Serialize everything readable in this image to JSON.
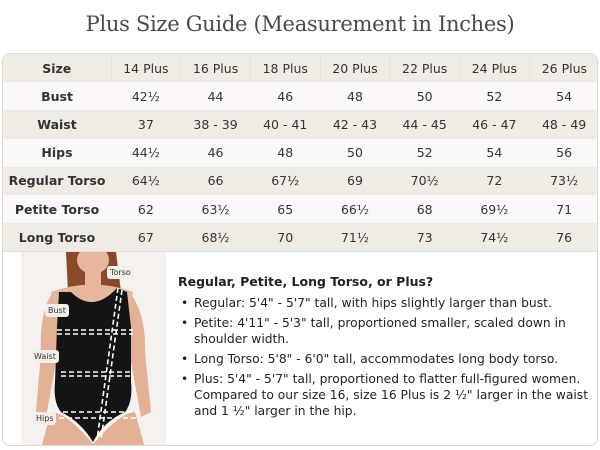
{
  "title": "Plus Size Guide (Measurement in Inches)",
  "table": {
    "header": [
      "Size",
      "14 Plus",
      "16 Plus",
      "18 Plus",
      "20 Plus",
      "22 Plus",
      "24 Plus",
      "26 Plus"
    ],
    "rows": [
      {
        "label": "Bust",
        "values": [
          "42½",
          "44",
          "46",
          "48",
          "50",
          "52",
          "54"
        ]
      },
      {
        "label": "Waist",
        "values": [
          "37",
          "38 - 39",
          "40 - 41",
          "42 - 43",
          "44 - 45",
          "46 - 47",
          "48 - 49"
        ]
      },
      {
        "label": "Hips",
        "values": [
          "44½",
          "46",
          "48",
          "50",
          "52",
          "54",
          "56"
        ]
      },
      {
        "label": "Regular Torso",
        "values": [
          "64½",
          "66",
          "67½",
          "69",
          "70½",
          "72",
          "73½"
        ]
      },
      {
        "label": "Petite Torso",
        "values": [
          "62",
          "63½",
          "65",
          "66½",
          "68",
          "69½",
          "71"
        ]
      },
      {
        "label": "Long Torso",
        "values": [
          "67",
          "68½",
          "70",
          "71½",
          "73",
          "74½",
          "76"
        ]
      }
    ]
  },
  "figure": {
    "labels": {
      "torso": "Torso",
      "bust": "Bust",
      "waist": "Waist",
      "hips": "Hips"
    }
  },
  "info": {
    "heading": "Regular, Petite, Long Torso, or Plus?",
    "items": [
      "Regular: 5'4\" - 5'7\" tall, with hips slightly larger than bust.",
      "Petite: 4'11\" - 5'3\" tall, proportioned smaller, scaled down in shoulder width.",
      "Long Torso: 5'8\" - 6'0\" tall, accommodates long body torso.",
      "Plus: 5'4\" - 5'7\" tall, proportioned to flatter full-figured women. Compared to our size 16, size 16 Plus is 2 ½\" larger in the waist and 1 ½\" larger in the hip."
    ]
  },
  "colors": {
    "header_bg": "#efece6",
    "row_light": "#faf9f7",
    "swimsuit": "#141414",
    "skin": "#e6b79c",
    "hair": "#8a4a2a"
  }
}
